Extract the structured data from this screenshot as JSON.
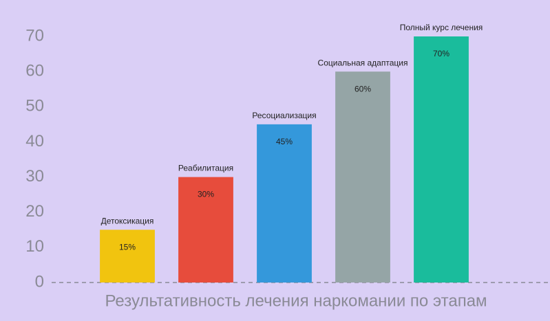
{
  "chart_data": {
    "type": "bar",
    "title": "Результативность лечения наркомании по этапам",
    "categories": [
      "Детоксикация",
      "Реабилитация",
      "Ресоциализация",
      "Социальная адаптация",
      "Полный курс лечения"
    ],
    "values": [
      15,
      30,
      45,
      60,
      70
    ],
    "value_labels": [
      "15%",
      "30%",
      "45%",
      "60%",
      "70%"
    ],
    "colors": [
      "#f1c40f",
      "#e74c3c",
      "#3498db",
      "#95a5a6",
      "#1abc9c"
    ],
    "ylim": [
      0,
      70
    ],
    "yticks": [
      0,
      10,
      20,
      30,
      40,
      50,
      60,
      70
    ]
  }
}
